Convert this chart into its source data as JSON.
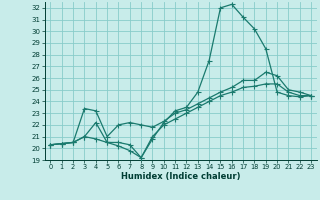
{
  "xlabel": "Humidex (Indice chaleur)",
  "background_color": "#c8ecea",
  "grid_color": "#88ccca",
  "line_color": "#1a7a6e",
  "xlim": [
    -0.5,
    23.5
  ],
  "ylim": [
    19,
    32.5
  ],
  "xticks": [
    0,
    1,
    2,
    3,
    4,
    5,
    6,
    7,
    8,
    9,
    10,
    11,
    12,
    13,
    14,
    15,
    16,
    17,
    18,
    19,
    20,
    21,
    22,
    23
  ],
  "yticks": [
    19,
    20,
    21,
    22,
    23,
    24,
    25,
    26,
    27,
    28,
    29,
    30,
    31,
    32
  ],
  "line1_x": [
    0,
    1,
    2,
    3,
    4,
    5,
    6,
    7,
    8,
    9,
    10,
    11,
    12,
    13,
    14,
    15,
    16,
    17,
    18,
    19,
    20,
    21,
    22,
    23
  ],
  "line1_y": [
    20.3,
    20.4,
    20.5,
    21.0,
    20.8,
    20.5,
    20.5,
    20.3,
    19.2,
    20.8,
    22.2,
    23.2,
    23.5,
    24.8,
    27.5,
    32.0,
    32.3,
    31.2,
    30.2,
    28.5,
    24.8,
    24.5,
    24.4,
    24.5
  ],
  "line2_x": [
    0,
    1,
    2,
    3,
    4,
    5,
    6,
    7,
    8,
    9,
    10,
    11,
    12,
    13,
    14,
    15,
    16,
    17,
    18,
    19,
    20,
    21,
    22,
    23
  ],
  "line2_y": [
    20.3,
    20.4,
    20.5,
    23.4,
    23.2,
    21.0,
    22.0,
    22.2,
    22.0,
    21.8,
    22.3,
    23.0,
    23.3,
    23.8,
    24.3,
    24.8,
    25.2,
    25.8,
    25.8,
    26.5,
    26.2,
    25.0,
    24.8,
    24.5
  ],
  "line3_x": [
    0,
    1,
    2,
    3,
    4,
    5,
    6,
    7,
    8,
    9,
    10,
    11,
    12,
    13,
    14,
    15,
    16,
    17,
    18,
    19,
    20,
    21,
    22,
    23
  ],
  "line3_y": [
    20.3,
    20.4,
    20.5,
    21.0,
    22.2,
    20.5,
    20.2,
    19.8,
    19.2,
    21.0,
    22.0,
    22.5,
    23.0,
    23.5,
    24.0,
    24.5,
    24.8,
    25.2,
    25.3,
    25.5,
    25.5,
    24.8,
    24.5,
    24.5
  ]
}
